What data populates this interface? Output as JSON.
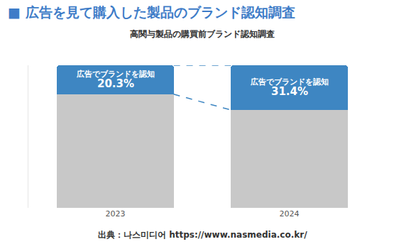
{
  "chart_data": {
    "type": "bar",
    "title": "■ 広告を見て購入した製品のブランド認知調査",
    "subtitle": "高関与製品の購買前ブランド認知調査",
    "annotations": [
      "出典：나스미디어 https://www.nasmedia.co.kr/"
    ],
    "categories": [
      "2023",
      "2024"
    ],
    "series": [
      {
        "values": [
          79.7,
          68.6
        ],
        "color": "#c8c8c8"
      },
      {
        "name": "広告でブランドを認知",
        "values": [
          20.3,
          31.4
        ],
        "value_labels": [
          "20.3%",
          "31.4%"
        ],
        "color": "#3e86c2"
      }
    ],
    "stacked": true,
    "data_labels": true,
    "ylim": [
      0,
      100
    ],
    "yticks": [],
    "tick_labels": "x",
    "grid": false
  }
}
